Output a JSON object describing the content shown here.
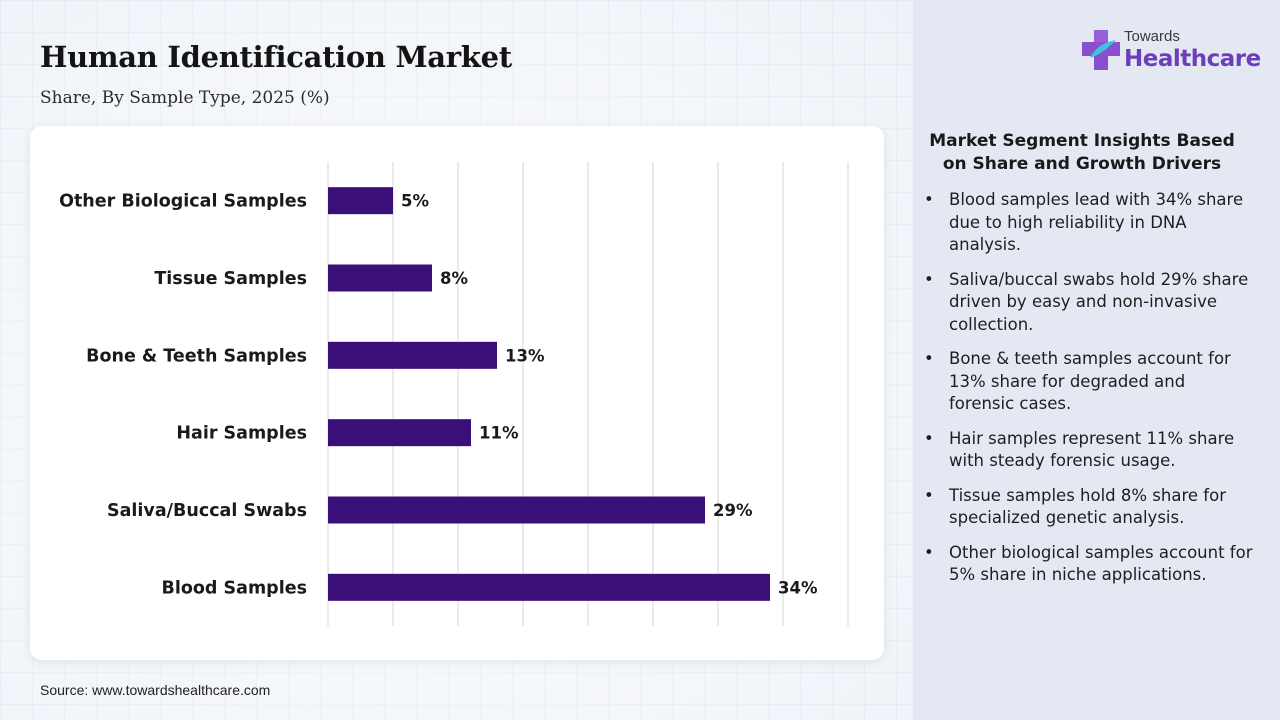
{
  "header": {
    "title": "Human Identification Market",
    "subtitle": "Share, By Sample Type, 2025 (%)"
  },
  "logo": {
    "small_text": "Towards",
    "big_text": "Healthcare",
    "icon": "medical-cross-logo-icon"
  },
  "source": "Source: www.towardshealthcare.com",
  "insights": {
    "title": "Market Segment Insights Based on Share and Growth Drivers",
    "bullet": "•",
    "items": [
      "Blood samples lead with 34% share due to high reliability in DNA analysis.",
      "Saliva/buccal swabs hold 29% share driven by easy and non-invasive collection.",
      "Bone & teeth samples account for 13% share for degraded and forensic cases.",
      "Hair samples represent 11% share with steady forensic usage.",
      "Tissue samples hold 8% share for specialized genetic analysis.",
      "Other biological samples account for 5% share in niche applications."
    ]
  },
  "colors": {
    "bar": "#3b0f7a",
    "grid": "#d6d6d6",
    "text": "#1a1a1a",
    "brand": "#6b3fb8"
  },
  "chart_data": {
    "type": "bar",
    "orientation": "horizontal",
    "categories": [
      "Other Biological Samples",
      "Tissue Samples",
      "Bone & Teeth Samples",
      "Hair Samples",
      "Saliva/Buccal Swabs",
      "Blood Samples"
    ],
    "values": [
      5,
      8,
      13,
      11,
      29,
      34
    ],
    "value_suffix": "%",
    "title": "Human Identification Market",
    "subtitle": "Share, By Sample Type, 2025 (%)",
    "xlim": [
      0,
      40
    ],
    "grid": true,
    "legend": "none"
  }
}
